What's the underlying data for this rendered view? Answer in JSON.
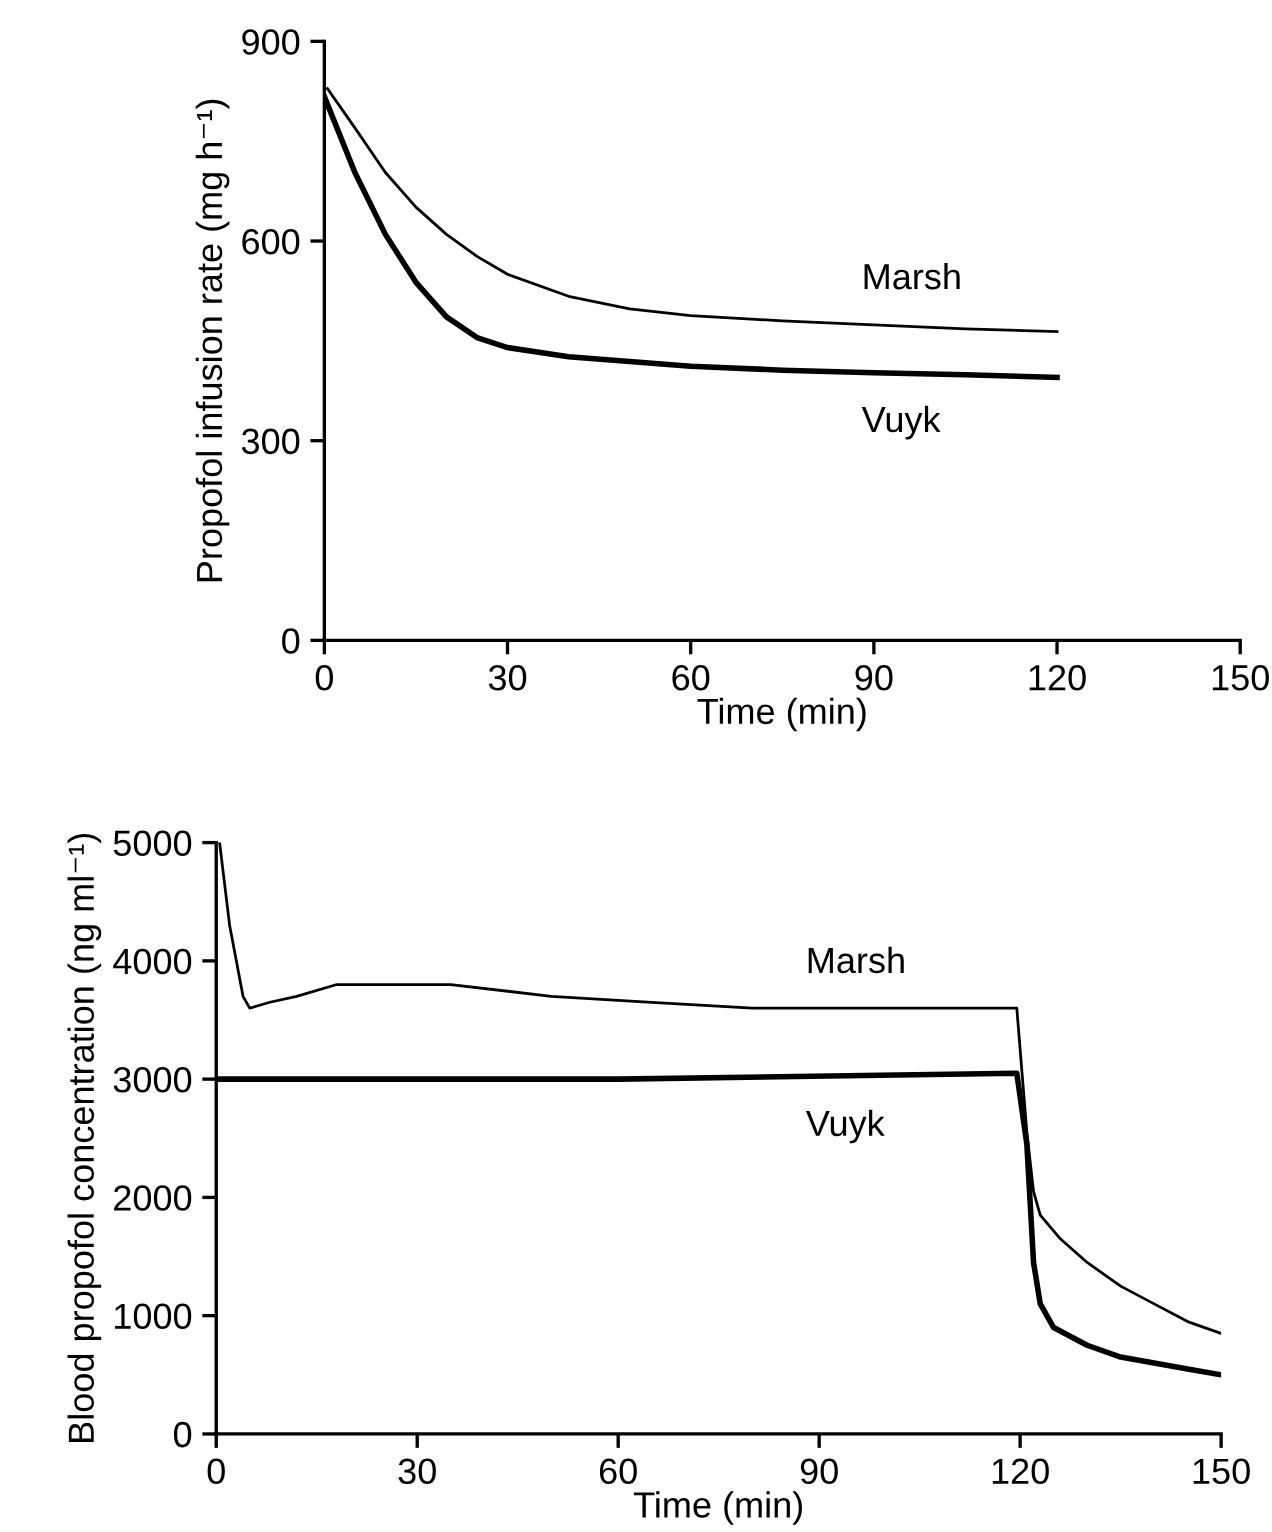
{
  "chart_data": [
    {
      "type": "line",
      "xlabel": "Time (min)",
      "ylabel": "Propofol infusion rate (mg h⁻¹)",
      "xlim": [
        0,
        150
      ],
      "xticks": [
        0,
        30,
        60,
        90,
        120,
        150
      ],
      "ylim": [
        0,
        900
      ],
      "yticks": [
        0,
        300,
        600,
        900
      ],
      "grid": false,
      "legend": false,
      "marker": "none",
      "line_style": "solid",
      "series": [
        {
          "name": "Marsh",
          "color": "#000000",
          "x": [
            0.5,
            5,
            10,
            15,
            20,
            25,
            30,
            40,
            50,
            60,
            75,
            90,
            105,
            120
          ],
          "values": [
            829,
            770,
            703,
            651,
            610,
            577,
            550,
            517,
            498,
            488,
            480,
            474,
            468,
            464
          ]
        },
        {
          "name": "Vuyk",
          "color": "#000000",
          "x": [
            0,
            5,
            10,
            15,
            20,
            25,
            30,
            40,
            50,
            60,
            75,
            90,
            105,
            120
          ],
          "values": [
            817,
            703,
            610,
            538,
            486,
            455,
            440,
            426,
            419,
            412,
            406,
            402,
            399,
            395
          ]
        }
      ]
    },
    {
      "type": "line",
      "xlabel": "Time (min)",
      "ylabel": "Blood propofol concentration (ng ml⁻¹)",
      "xlim": [
        0,
        150
      ],
      "xticks": [
        0,
        30,
        60,
        90,
        120,
        150
      ],
      "ylim": [
        0,
        5000
      ],
      "yticks": [
        0,
        1000,
        2000,
        3000,
        4000,
        5000
      ],
      "grid": false,
      "legend": false,
      "marker": "none",
      "line_style": "solid",
      "series": [
        {
          "name": "Marsh",
          "color": "#000000",
          "x": [
            0.5,
            2,
            4,
            5,
            8,
            12,
            18,
            25,
            35,
            50,
            65,
            80,
            100,
            119.5,
            121,
            122,
            123,
            126,
            130,
            135,
            140,
            145,
            150
          ],
          "values": [
            5000,
            4300,
            3700,
            3600,
            3650,
            3700,
            3800,
            3800,
            3800,
            3700,
            3650,
            3600,
            3600,
            3600,
            2550,
            2050,
            1850,
            1650,
            1450,
            1250,
            1100,
            950,
            850
          ]
        },
        {
          "name": "Vuyk",
          "color": "#000000",
          "x": [
            0,
            60,
            119.5,
            121,
            122,
            123,
            125,
            130,
            135,
            140,
            145,
            150
          ],
          "values": [
            3000,
            3000,
            3050,
            2450,
            1450,
            1100,
            900,
            750,
            650,
            600,
            550,
            500
          ]
        }
      ]
    }
  ]
}
